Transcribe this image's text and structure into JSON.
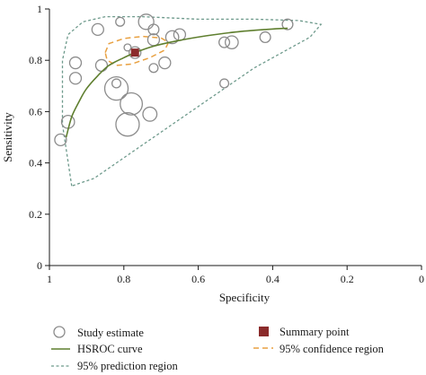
{
  "chart_data": {
    "type": "scatter",
    "xlabel": "Specificity",
    "ylabel": "Sensitivity",
    "x_reversed": true,
    "xlim": [
      0,
      1
    ],
    "ylim": [
      0,
      1
    ],
    "x_ticks": [
      "1",
      "0.8",
      "0.6",
      "0.4",
      "0.2",
      "0"
    ],
    "y_ticks": [
      "0",
      "0.2",
      "0.4",
      "0.6",
      "0.8",
      "1"
    ],
    "grid": false,
    "legend_position": "bottom",
    "studies": [
      {
        "specificity": 0.97,
        "sensitivity": 0.49,
        "size": 1.0
      },
      {
        "specificity": 0.95,
        "sensitivity": 0.56,
        "size": 1.1
      },
      {
        "specificity": 0.93,
        "sensitivity": 0.73,
        "size": 1.0
      },
      {
        "specificity": 0.93,
        "sensitivity": 0.79,
        "size": 1.0
      },
      {
        "specificity": 0.87,
        "sensitivity": 0.92,
        "size": 1.0
      },
      {
        "specificity": 0.81,
        "sensitivity": 0.95,
        "size": 0.75
      },
      {
        "specificity": 0.74,
        "sensitivity": 0.95,
        "size": 1.3
      },
      {
        "specificity": 0.72,
        "sensitivity": 0.92,
        "size": 0.9
      },
      {
        "specificity": 0.72,
        "sensitivity": 0.88,
        "size": 1.0
      },
      {
        "specificity": 0.79,
        "sensitivity": 0.85,
        "size": 0.6
      },
      {
        "specificity": 0.77,
        "sensitivity": 0.83,
        "size": 1.0
      },
      {
        "specificity": 0.82,
        "sensitivity": 0.69,
        "size": 2.0
      },
      {
        "specificity": 0.78,
        "sensitivity": 0.63,
        "size": 1.9
      },
      {
        "specificity": 0.79,
        "sensitivity": 0.55,
        "size": 2.0
      },
      {
        "specificity": 0.82,
        "sensitivity": 0.71,
        "size": 0.75
      },
      {
        "specificity": 0.72,
        "sensitivity": 0.77,
        "size": 0.75
      },
      {
        "specificity": 0.73,
        "sensitivity": 0.59,
        "size": 1.2
      },
      {
        "specificity": 0.86,
        "sensitivity": 0.78,
        "size": 1.0
      },
      {
        "specificity": 0.69,
        "sensitivity": 0.79,
        "size": 1.0
      },
      {
        "specificity": 0.67,
        "sensitivity": 0.89,
        "size": 1.1
      },
      {
        "specificity": 0.65,
        "sensitivity": 0.9,
        "size": 1.0
      },
      {
        "specificity": 0.53,
        "sensitivity": 0.87,
        "size": 0.9
      },
      {
        "specificity": 0.51,
        "sensitivity": 0.87,
        "size": 1.1
      },
      {
        "specificity": 0.53,
        "sensitivity": 0.71,
        "size": 0.75
      },
      {
        "specificity": 0.42,
        "sensitivity": 0.89,
        "size": 0.9
      },
      {
        "specificity": 0.36,
        "sensitivity": 0.94,
        "size": 0.9
      }
    ],
    "summary_point": {
      "specificity": 0.77,
      "sensitivity": 0.83
    },
    "hsroc_curve": [
      [
        0.955,
        0.5
      ],
      [
        0.94,
        0.58
      ],
      [
        0.92,
        0.64
      ],
      [
        0.9,
        0.69
      ],
      [
        0.87,
        0.74
      ],
      [
        0.84,
        0.78
      ],
      [
        0.8,
        0.81
      ],
      [
        0.77,
        0.83
      ],
      [
        0.72,
        0.855
      ],
      [
        0.66,
        0.875
      ],
      [
        0.58,
        0.895
      ],
      [
        0.5,
        0.91
      ],
      [
        0.42,
        0.92
      ],
      [
        0.36,
        0.925
      ]
    ],
    "confidence_region": [
      [
        0.85,
        0.83
      ],
      [
        0.84,
        0.865
      ],
      [
        0.8,
        0.885
      ],
      [
        0.75,
        0.893
      ],
      [
        0.7,
        0.887
      ],
      [
        0.68,
        0.87
      ],
      [
        0.69,
        0.84
      ],
      [
        0.73,
        0.81
      ],
      [
        0.78,
        0.785
      ],
      [
        0.82,
        0.78
      ],
      [
        0.845,
        0.8
      ],
      [
        0.85,
        0.83
      ]
    ],
    "prediction_region": [
      [
        0.94,
        0.31
      ],
      [
        0.965,
        0.55
      ],
      [
        0.965,
        0.8
      ],
      [
        0.95,
        0.9
      ],
      [
        0.91,
        0.95
      ],
      [
        0.85,
        0.97
      ],
      [
        0.75,
        0.97
      ],
      [
        0.6,
        0.96
      ],
      [
        0.45,
        0.96
      ],
      [
        0.33,
        0.955
      ],
      [
        0.27,
        0.94
      ],
      [
        0.3,
        0.89
      ],
      [
        0.45,
        0.77
      ],
      [
        0.62,
        0.6
      ],
      [
        0.8,
        0.42
      ],
      [
        0.88,
        0.34
      ],
      [
        0.94,
        0.31
      ]
    ],
    "legend": {
      "study_estimate": "Study estimate",
      "hsroc_curve": "HSROC curve",
      "prediction_region": "95% prediction region",
      "summary_point": "Summary point",
      "confidence_region": "95% confidence region"
    },
    "colors": {
      "study": "#8c8c8c",
      "hsroc": "#5f7f2f",
      "prediction": "#6e9a8c",
      "summary": "#8b2b2b",
      "confidence": "#e8a040",
      "axis": "#1a1a1a"
    }
  }
}
